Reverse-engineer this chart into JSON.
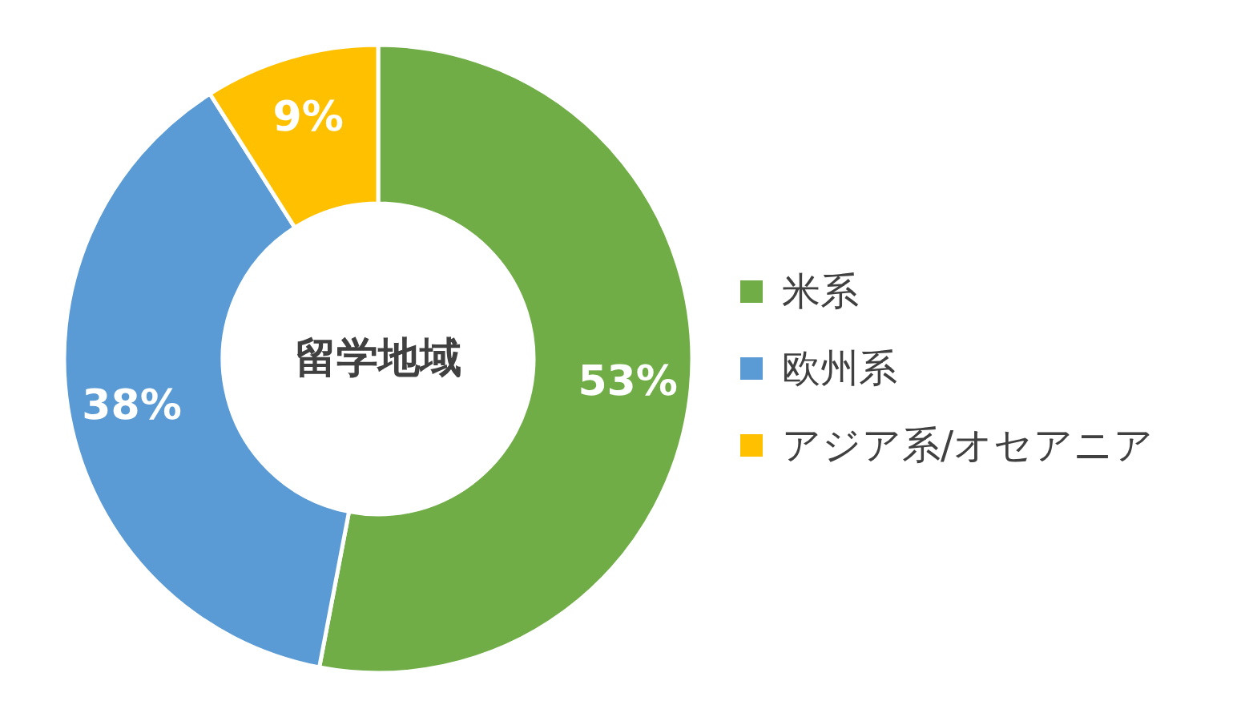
{
  "chart_data": {
    "type": "donut",
    "title": "留学地域",
    "categories": [
      "米系",
      "欧州系",
      "アジア系/オセアニア"
    ],
    "values": [
      53,
      38,
      9
    ],
    "colors": [
      "#70ad47",
      "#5b9bd5",
      "#ffc000"
    ],
    "value_labels": [
      "53%",
      "38%",
      "9%"
    ],
    "legend": "right"
  }
}
